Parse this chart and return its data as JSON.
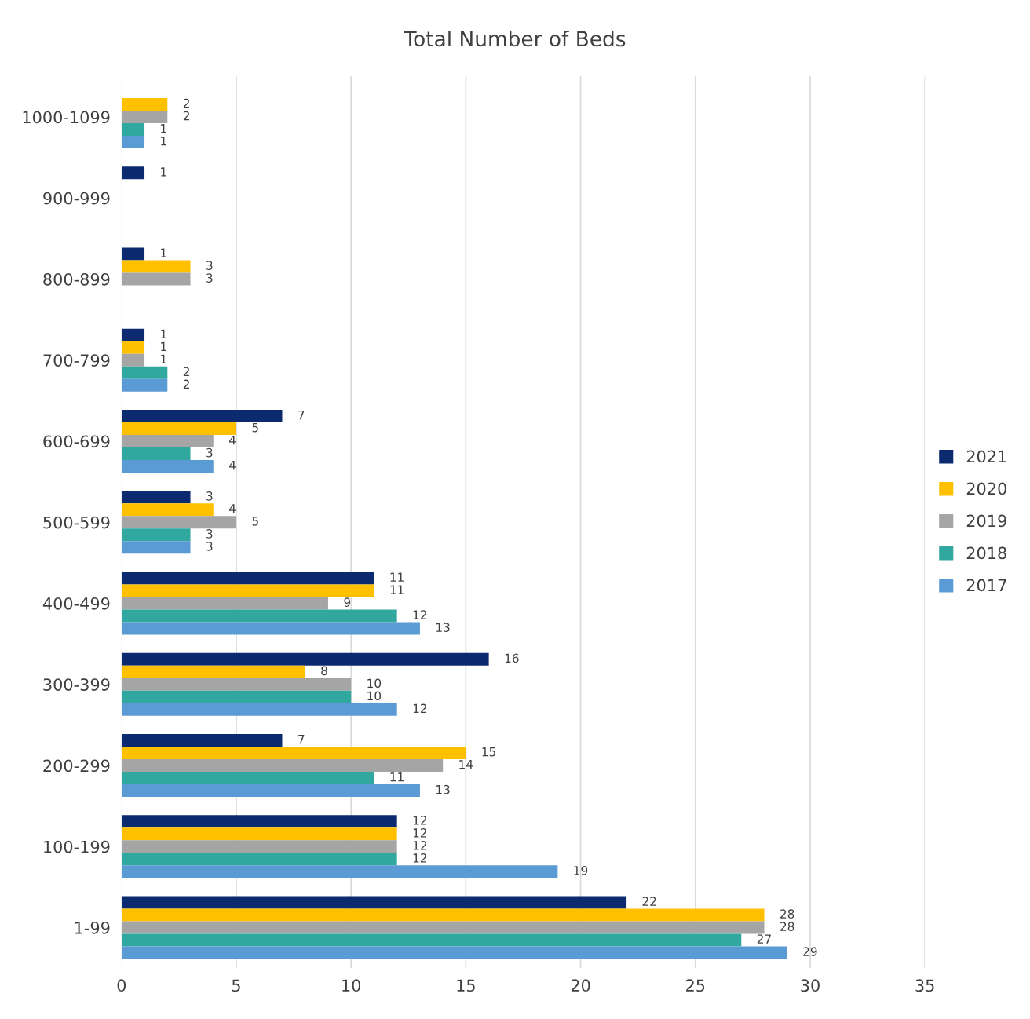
{
  "chart_data": {
    "type": "bar",
    "orientation": "horizontal",
    "title": "Total Number of Beds",
    "categories": [
      "1000-1099",
      "900-999",
      "800-899",
      "700-799",
      "600-699",
      "500-599",
      "400-499",
      "300-399",
      "200-299",
      "100-199",
      "1-99"
    ],
    "series": [
      {
        "name": "2021",
        "color": "#0b2a6f",
        "values": [
          null,
          1,
          1,
          1,
          7,
          3,
          11,
          16,
          7,
          12,
          22
        ]
      },
      {
        "name": "2020",
        "color": "#ffc000",
        "values": [
          2,
          null,
          3,
          1,
          5,
          4,
          11,
          8,
          15,
          12,
          28
        ]
      },
      {
        "name": "2019",
        "color": "#a5a5a5",
        "values": [
          2,
          null,
          3,
          1,
          4,
          5,
          9,
          10,
          14,
          12,
          28
        ]
      },
      {
        "name": "2018",
        "color": "#30a89f",
        "values": [
          1,
          null,
          null,
          2,
          3,
          3,
          12,
          10,
          11,
          12,
          27
        ]
      },
      {
        "name": "2017",
        "color": "#5b9bd5",
        "values": [
          1,
          null,
          null,
          2,
          4,
          3,
          13,
          12,
          13,
          19,
          29
        ]
      }
    ],
    "xlim": [
      0,
      35
    ],
    "xticks": [
      0,
      5,
      10,
      15,
      20,
      25,
      30,
      35
    ],
    "grid": "x",
    "legend": "right",
    "data_labels": true
  }
}
